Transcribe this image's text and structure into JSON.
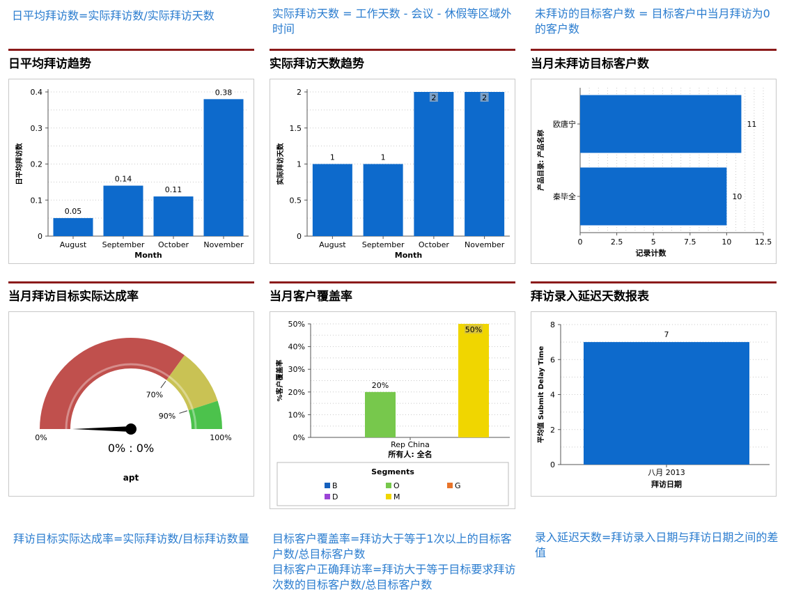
{
  "notes": {
    "top1": "日平均拜访数=实际拜访数/实际拜访天数",
    "top2": "实际拜访天数 = 工作天数 - 会议 - 休假等区域外时间",
    "top3": "未拜访的目标客户数 = 目标客户中当月拜访为0的客户数",
    "bottom1": "拜访目标实际达成率=实际拜访数/目标拜访数量",
    "bottom2": "目标客户覆盖率=拜访大于等于1次以上的目标客户数/总目标客户数\n目标客户正确拜访率=拜访大于等于目标要求拜访次数的目标客户数/总目标客户数",
    "bottom3": "录入延迟天数=拜访录入日期与拜访日期之间的差值"
  },
  "panel_titles": {
    "p1": "日平均拜访趋势",
    "p2": "实际拜访天数趋势",
    "p3": "当月未拜访目标客户数",
    "p4": "当月拜访目标实际达成率",
    "p5": "当月客户覆盖率",
    "p6": "拜访录入延迟天数报表"
  },
  "colors": {
    "blue": "#0d6acc",
    "red_rule": "#8b1a1a",
    "note_text": "#2a7ccf",
    "gauge_red": "#c0504d",
    "gauge_yellow": "#c9c254",
    "gauge_green": "#4cc24c",
    "seg_B": "#1560bd",
    "seg_O": "#77c84c",
    "seg_G": "#e8742a",
    "seg_D": "#9b44d6",
    "seg_M": "#f0d600"
  },
  "chart_data": [
    {
      "id": "p1",
      "type": "bar",
      "categories": [
        "August",
        "September",
        "October",
        "November"
      ],
      "values": [
        0.05,
        0.14,
        0.11,
        0.38
      ],
      "data_labels": [
        "0.05",
        "0.14",
        "0.11",
        "0.38"
      ],
      "xlabel": "Month",
      "ylabel": "日平均拜访数",
      "ylim": [
        0,
        0.4
      ],
      "yticks": [
        0,
        0.1,
        0.2,
        0.3,
        0.4
      ],
      "ytick_labels": [
        "0",
        "0.1",
        "0.2",
        "0.3",
        "0.4"
      ],
      "grid": true
    },
    {
      "id": "p2",
      "type": "bar",
      "categories": [
        "August",
        "September",
        "October",
        "November"
      ],
      "values": [
        1,
        1,
        2,
        2
      ],
      "data_labels": [
        "1",
        "1",
        "2",
        "2"
      ],
      "xlabel": "Month",
      "ylabel": "实际拜访天数",
      "ylim": [
        0,
        2
      ],
      "yticks": [
        0,
        0.5,
        1,
        1.5,
        2
      ],
      "ytick_labels": [
        "0",
        "0.5",
        "1",
        "1.5",
        "2"
      ],
      "grid": true
    },
    {
      "id": "p3",
      "type": "bar",
      "orientation": "horizontal",
      "categories": [
        "欧唐宁",
        "秦毕全"
      ],
      "values": [
        11,
        10
      ],
      "data_labels": [
        "11",
        "10"
      ],
      "xlabel": "记录计数",
      "ylabel": "产品目录: 产品名称",
      "xlim": [
        0,
        12.5
      ],
      "xticks": [
        0,
        2.5,
        5,
        7.5,
        10,
        12.5
      ],
      "xtick_labels": [
        "0",
        "2.5",
        "5",
        "7.5",
        "10",
        "12.5"
      ],
      "grid": true
    },
    {
      "id": "p4",
      "type": "gauge",
      "value_percent": 0,
      "readout": "0% : 0%",
      "label": "apt",
      "min_label": "0%",
      "max_label": "100%",
      "bands": [
        {
          "from": 0,
          "to": 70,
          "color": "#c0504d"
        },
        {
          "from": 70,
          "to": 90,
          "color": "#c9c254"
        },
        {
          "from": 90,
          "to": 100,
          "color": "#4cc24c"
        }
      ],
      "threshold_labels": [
        {
          "value": 70,
          "text": "70%"
        },
        {
          "value": 90,
          "text": "90%"
        }
      ]
    },
    {
      "id": "p5",
      "type": "bar",
      "categories": [
        "Rep China"
      ],
      "category_sublabel": "所有人: 全名",
      "series": [
        {
          "name": "O",
          "value": 20,
          "label": "20%",
          "color": "#77c84c"
        },
        {
          "name": "M",
          "value": 50,
          "label": "50%",
          "color": "#f0d600"
        }
      ],
      "ylabel": "%客户覆盖率",
      "ylim": [
        0,
        50
      ],
      "yticks": [
        0,
        10,
        20,
        30,
        40,
        50
      ],
      "ytick_labels": [
        "0%",
        "10%",
        "20%",
        "30%",
        "40%",
        "50%"
      ],
      "legend_title": "Segments",
      "legend": [
        {
          "name": "B",
          "color": "#1560bd"
        },
        {
          "name": "O",
          "color": "#77c84c"
        },
        {
          "name": "G",
          "color": "#e8742a"
        },
        {
          "name": "D",
          "color": "#9b44d6"
        },
        {
          "name": "M",
          "color": "#f0d600"
        }
      ],
      "legend_position": "bottom",
      "grid": true
    },
    {
      "id": "p6",
      "type": "bar",
      "categories": [
        "八月 2013"
      ],
      "values": [
        7
      ],
      "data_labels": [
        "7"
      ],
      "xlabel": "拜访日期",
      "ylabel": "平均值 Submit Delay Time",
      "ylim": [
        0,
        8
      ],
      "yticks": [
        0,
        2,
        4,
        6,
        8
      ],
      "ytick_labels": [
        "0",
        "2",
        "4",
        "6",
        "8"
      ],
      "grid": true
    }
  ]
}
